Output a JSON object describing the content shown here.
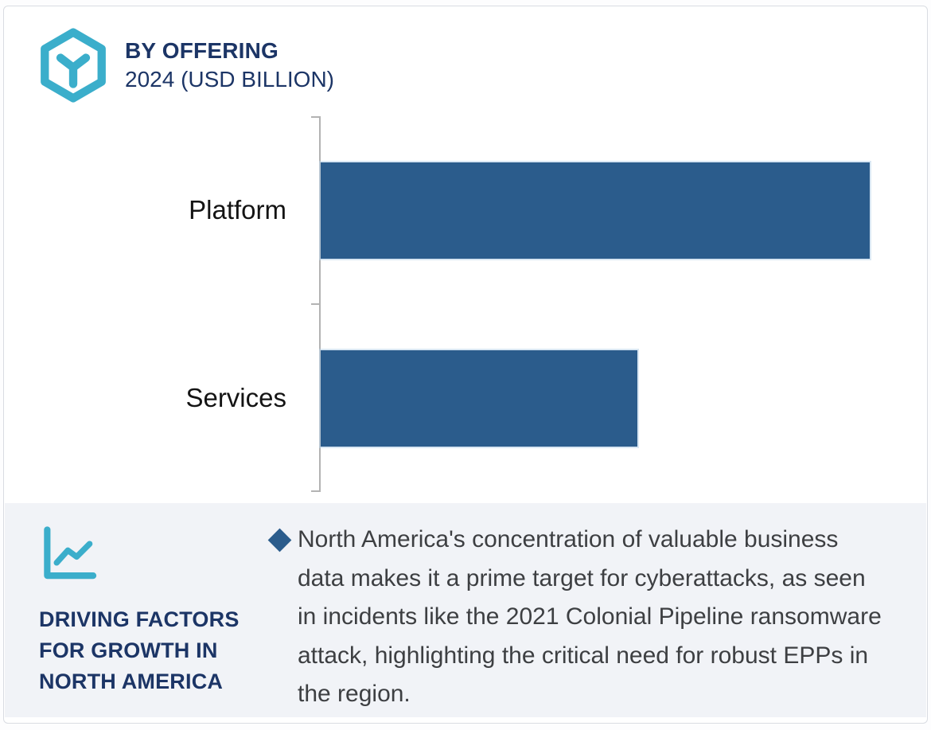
{
  "header": {
    "title": "BY OFFERING",
    "subtitle": "2024 (USD BILLION)",
    "logo_icon": "hexagon-y-logo-icon"
  },
  "chart_data": {
    "type": "bar",
    "orientation": "horizontal",
    "title": "BY OFFERING",
    "subtitle": "2024 (USD BILLION)",
    "categories": [
      "Platform",
      "Services"
    ],
    "values": [
      92,
      53
    ],
    "value_note": "numeric values not labeled in image; values are estimated relative bar lengths as % of plot width",
    "xlim": [
      0,
      100
    ],
    "grid": false,
    "legend": false,
    "axis_value_labels_shown": false,
    "bar_color": "#2b5c8c",
    "axis_color": "#b3b3b3"
  },
  "factors": {
    "icon": "line-chart-icon",
    "heading_lines": [
      "DRIVING FACTORS",
      "FOR GROWTH IN",
      "NORTH AMERICA"
    ],
    "bullet": {
      "marker": "diamond-bullet",
      "text": "North America's concentration of valuable business data makes it a prime target for cyberattacks, as seen in incidents like the 2021 Colonial Pipeline ransomware attack, highlighting the critical need for robust EPPs in the region."
    }
  },
  "colors": {
    "accent_teal": "#3baecb",
    "heading_navy": "#1c3566",
    "bar_blue": "#2b5c8c",
    "panel_background": "#f1f3f7",
    "body_text": "#3d3f42",
    "card_border": "#d9dce2"
  }
}
